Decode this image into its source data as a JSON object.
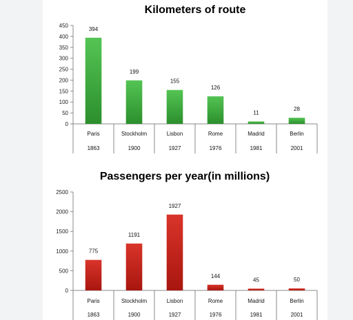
{
  "chart_data": [
    {
      "type": "bar",
      "title": "Kilometers of route",
      "categories": [
        "Paris",
        "Stockholm",
        "Lisbon",
        "Rome",
        "Madrid",
        "Berlin"
      ],
      "years": [
        "1863",
        "1900",
        "1927",
        "1976",
        "1981",
        "2001"
      ],
      "values": [
        394,
        199,
        155,
        126,
        11,
        28
      ],
      "data_labels": [
        "394",
        "199",
        "155",
        "126",
        "11",
        "28"
      ],
      "yticks": [
        "0",
        "50",
        "100",
        "150",
        "200",
        "250",
        "300",
        "350",
        "400",
        "450"
      ],
      "ylim": [
        0,
        450
      ],
      "xlabel": "",
      "ylabel": "",
      "grid": false,
      "legend": "none",
      "bar_color": "#3fae3f"
    },
    {
      "type": "bar",
      "title": "Passengers per year(in millions)",
      "categories": [
        "Paris",
        "Stockholm",
        "Lisbon",
        "Rome",
        "Madrid",
        "Berlin"
      ],
      "years": [
        "1863",
        "1900",
        "1927",
        "1976",
        "1981",
        "2001"
      ],
      "values": [
        775,
        1191,
        1927,
        144,
        45,
        50
      ],
      "data_labels": [
        "775",
        "1191",
        "1927",
        "144",
        "45",
        "50"
      ],
      "yticks": [
        "0",
        "500",
        "1000",
        "1500",
        "2000",
        "2500"
      ],
      "ylim": [
        0,
        2500
      ],
      "xlabel": "",
      "ylabel": "",
      "grid": false,
      "legend": "none",
      "bar_color": "#c8221c"
    }
  ]
}
